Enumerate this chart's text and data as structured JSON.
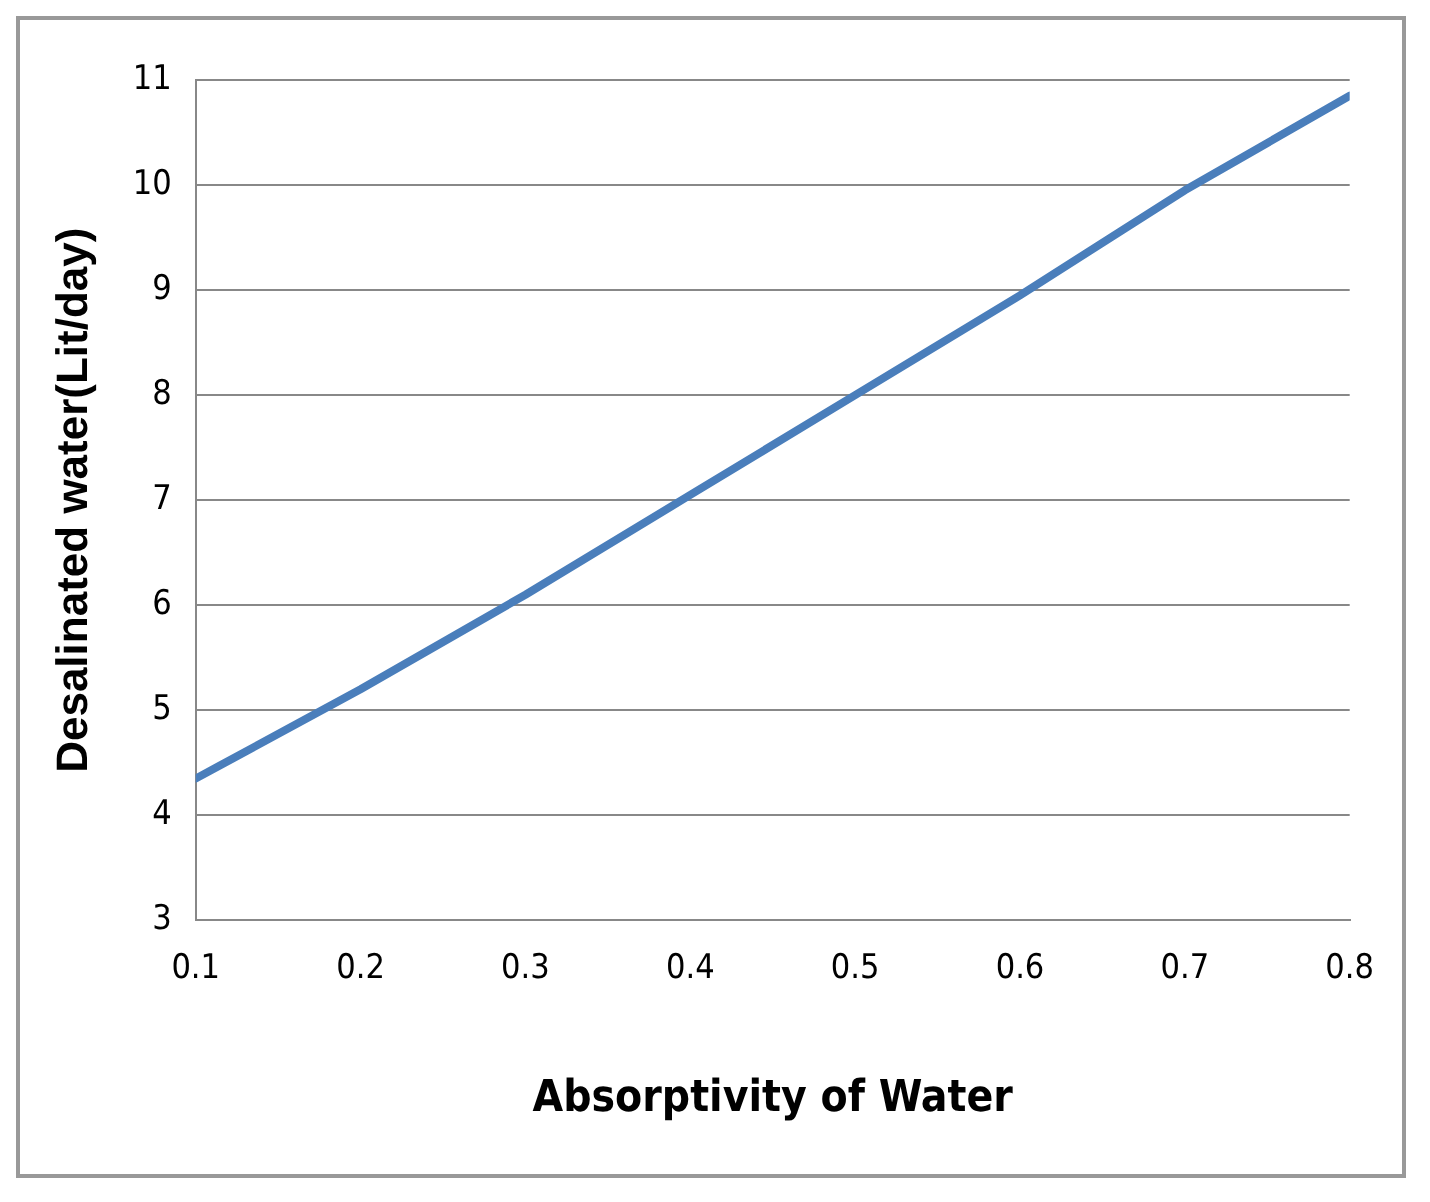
{
  "chart_data": {
    "type": "line",
    "xlabel": "Absorptivity of Water",
    "ylabel": "Desalinated water(Lit/day)",
    "x": [
      0.1,
      0.2,
      0.3,
      0.4,
      0.5,
      0.6,
      0.7,
      0.8
    ],
    "series": [
      {
        "color": "#4a7ebb",
        "values": [
          4.35,
          5.2,
          6.1,
          7.05,
          8.0,
          8.95,
          9.95,
          10.85
        ]
      }
    ],
    "xlim": [
      0.1,
      0.8
    ],
    "xticks": [
      0.1,
      0.2,
      0.3,
      0.4,
      0.5,
      0.6,
      0.7,
      0.8
    ],
    "ylim": [
      3,
      11
    ],
    "yticks": [
      3,
      4,
      5,
      6,
      7,
      8,
      9,
      10,
      11
    ],
    "grid": "y",
    "legend": false,
    "marker": "none",
    "line_style": "solid"
  }
}
